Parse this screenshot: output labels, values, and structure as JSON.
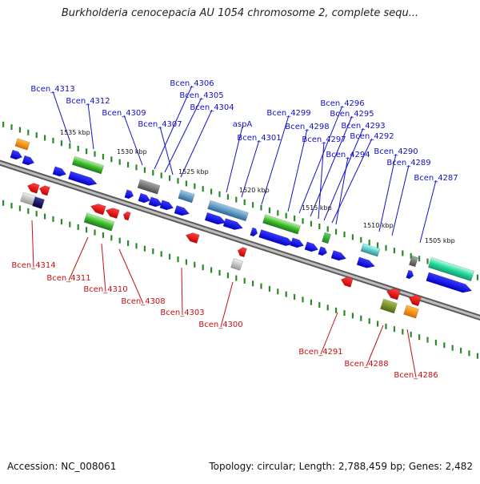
{
  "title": "Burkholderia cenocepacia AU 1054 chromosome 2, complete sequ...",
  "footer": {
    "accession": "Accession: NC_008061",
    "summary": "Topology: circular; Length: 2,788,459 bp; Genes: 2,482"
  },
  "colors": {
    "forward_gene": "#0c0cee",
    "reverse_gene": "#ee1010",
    "backbone": "#8c8c8c",
    "tick_mark": "#2a8a2a",
    "label_forward": "#1010c8",
    "label_reverse": "#c81010"
  },
  "ticks": [
    "1535 kbp",
    "1530 kbp",
    "1525 kbp",
    "1520 kbp",
    "1515 kbp",
    "1510 kbp",
    "1505 kbp"
  ],
  "labels_forward": [
    "Bcen_4313",
    "Bcen_4312",
    "Bcen_4309",
    "Bcen_4306",
    "Bcen_4305",
    "Bcen_4307",
    "Bcen_4304",
    "aspA",
    "Bcen_4301",
    "Bcen_4299",
    "Bcen_4298",
    "Bcen_4296",
    "Bcen_4295",
    "Bcen_4297",
    "Bcen_4293",
    "Bcen_4292",
    "Bcen_4294",
    "Bcen_4290",
    "Bcen_4289",
    "Bcen_4287"
  ],
  "labels_reverse": [
    "Bcen_4314",
    "Bcen_4311",
    "Bcen_4310",
    "Bcen_4308",
    "Bcen_4303",
    "Bcen_4300",
    "Bcen_4291",
    "Bcen_4288",
    "Bcen_4286"
  ]
}
